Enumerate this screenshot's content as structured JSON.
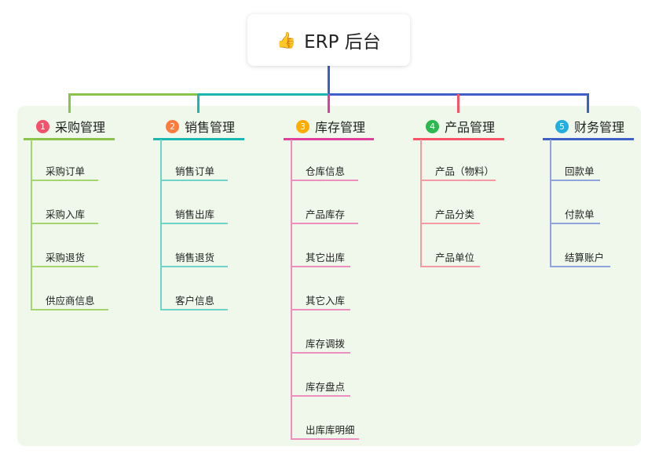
{
  "root": {
    "title": "ERP 后台",
    "icon": "thumbs-up-icon"
  },
  "branches": [
    {
      "number": "1",
      "title": "采购管理",
      "color": "#8bc34a",
      "badge_color": "#f4516c",
      "child_line_color": "#a5d56f",
      "children": [
        "采购订单",
        "采购入库",
        "采购退货",
        "供应商信息"
      ]
    },
    {
      "number": "2",
      "title": "销售管理",
      "color": "#1ab8b0",
      "badge_color": "#ff7a3d",
      "child_line_color": "#6fd3c9",
      "children": [
        "销售订单",
        "销售出库",
        "销售退货",
        "客户信息"
      ]
    },
    {
      "number": "3",
      "title": "库存管理",
      "color": "#e0409b",
      "badge_color": "#ffab00",
      "child_line_color": "#ec8fc0",
      "children": [
        "仓库信息",
        "产品库存",
        "其它出库",
        "其它入库",
        "库存调拨",
        "库存盘点",
        "出库库明细"
      ]
    },
    {
      "number": "4",
      "title": "产品管理",
      "color": "#f75468",
      "badge_color": "#2db84d",
      "child_line_color": "#f59aa2",
      "children": [
        "产品（物料）",
        "产品分类",
        "产品单位"
      ]
    },
    {
      "number": "5",
      "title": "财务管理",
      "color": "#3f5fc8",
      "badge_color": "#22aee0",
      "child_line_color": "#8fa4dc",
      "children": [
        "回款单",
        "付款单",
        "结算账户"
      ]
    }
  ]
}
